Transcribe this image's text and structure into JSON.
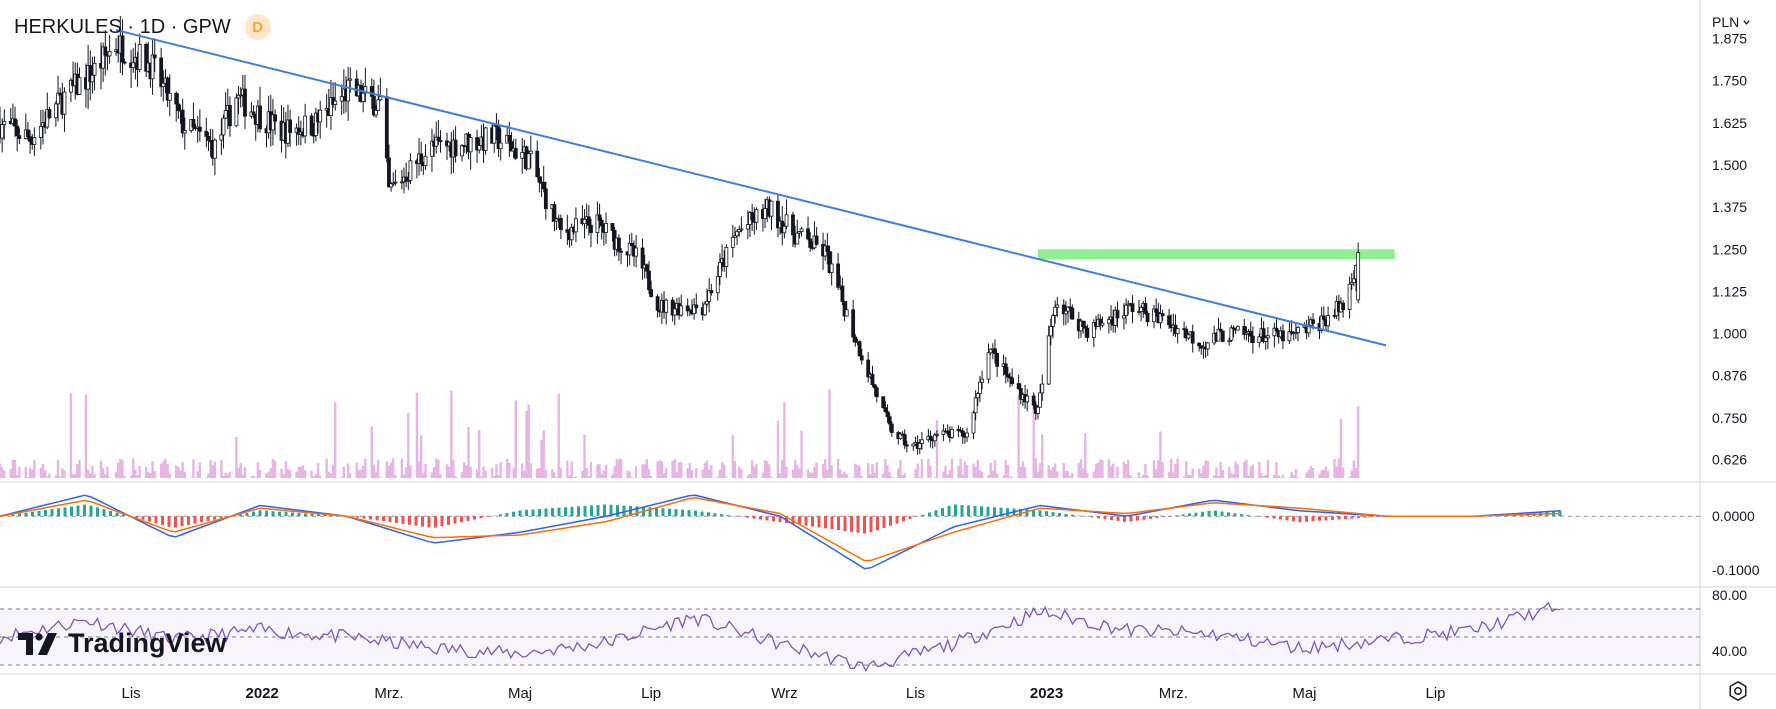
{
  "header": {
    "title": "HERKULES · 1D · GPW",
    "badge": "D"
  },
  "currency": {
    "label": "PLN",
    "icon": "chevron-down-icon"
  },
  "logo": {
    "text": "TradingView"
  },
  "settings_icon": "gear-icon",
  "colors": {
    "trendline": "#3d7fe0",
    "zone": "#90ee90",
    "volume": "#e7b5e3",
    "macd": "#2962ff",
    "signal": "#ff6d00",
    "rsi": "#7e57c2",
    "hist_pos": "#26a69a",
    "hist_neg": "#ef5350",
    "candle": "#131722"
  },
  "chart_data": [
    {
      "type": "candlestick",
      "title": "HERKULES · 1D · GPW",
      "ylim": [
        0.56,
        1.9
      ],
      "y_ticks": [
        "1.875",
        "1.750",
        "1.625",
        "1.500",
        "1.375",
        "1.250",
        "1.125",
        "1.000",
        "0.876",
        "0.750",
        "0.626"
      ],
      "x_ticks": [
        "Lis",
        "2022",
        "Mrz.",
        "Maj",
        "Lip",
        "Wrz",
        "Lis",
        "2023",
        "Mrz.",
        "Maj",
        "Lip"
      ],
      "series_close": [
        {
          "date": "2021-09-01",
          "close": 1.62
        },
        {
          "date": "2021-09-15",
          "close": 1.58
        },
        {
          "date": "2021-10-01",
          "close": 1.7
        },
        {
          "date": "2021-10-15",
          "close": 1.78
        },
        {
          "date": "2021-10-25",
          "close": 1.86
        },
        {
          "date": "2021-11-10",
          "close": 1.8
        },
        {
          "date": "2021-11-25",
          "close": 1.62
        },
        {
          "date": "2021-12-10",
          "close": 1.55
        },
        {
          "date": "2021-12-20",
          "close": 1.7
        },
        {
          "date": "2022-01-10",
          "close": 1.6
        },
        {
          "date": "2022-01-25",
          "close": 1.62
        },
        {
          "date": "2022-02-10",
          "close": 1.72
        },
        {
          "date": "2022-02-25",
          "close": 1.68
        },
        {
          "date": "2022-03-01",
          "close": 1.42
        },
        {
          "date": "2022-03-20",
          "close": 1.55
        },
        {
          "date": "2022-04-20",
          "close": 1.58
        },
        {
          "date": "2022-05-05",
          "close": 1.52
        },
        {
          "date": "2022-05-20",
          "close": 1.3
        },
        {
          "date": "2022-06-05",
          "close": 1.33
        },
        {
          "date": "2022-06-25",
          "close": 1.22
        },
        {
          "date": "2022-07-05",
          "close": 1.08
        },
        {
          "date": "2022-07-25",
          "close": 1.08
        },
        {
          "date": "2022-08-10",
          "close": 1.3
        },
        {
          "date": "2022-08-25",
          "close": 1.37
        },
        {
          "date": "2022-09-05",
          "close": 1.3
        },
        {
          "date": "2022-09-20",
          "close": 1.24
        },
        {
          "date": "2022-10-05",
          "close": 0.97
        },
        {
          "date": "2022-10-20",
          "close": 0.72
        },
        {
          "date": "2022-10-30",
          "close": 0.66
        },
        {
          "date": "2022-11-10",
          "close": 0.7
        },
        {
          "date": "2022-11-25",
          "close": 0.7
        },
        {
          "date": "2022-12-05",
          "close": 0.96
        },
        {
          "date": "2022-12-15",
          "close": 0.86
        },
        {
          "date": "2022-12-28",
          "close": 0.77
        },
        {
          "date": "2023-01-05",
          "close": 1.1
        },
        {
          "date": "2023-01-20",
          "close": 1.01
        },
        {
          "date": "2023-02-10",
          "close": 1.08
        },
        {
          "date": "2023-02-25",
          "close": 1.04
        },
        {
          "date": "2023-03-15",
          "close": 0.97
        },
        {
          "date": "2023-03-25",
          "close": 1.0
        },
        {
          "date": "2023-04-25",
          "close": 0.99
        },
        {
          "date": "2023-05-10",
          "close": 1.04
        },
        {
          "date": "2023-05-20",
          "close": 1.09
        },
        {
          "date": "2023-05-26",
          "close": 1.24
        }
      ],
      "annotations": {
        "trendline": [
          {
            "date": "2021-10-25",
            "price": 1.9
          },
          {
            "date": "2023-06-08",
            "price": 0.965
          }
        ],
        "resistance_zone": {
          "from": "2022-12-28",
          "to": "2023-06-12",
          "low": 1.22,
          "high": 1.25
        }
      }
    },
    {
      "type": "line",
      "title": "",
      "ylim": [
        -0.13,
        0.06
      ],
      "y_ticks": [
        "0.0000",
        "-0.1000"
      ],
      "series": [
        {
          "values": [
            0.0,
            0.04,
            -0.04,
            0.02,
            0.0,
            -0.05,
            -0.03,
            0.0,
            0.04,
            0.0,
            -0.1,
            -0.02,
            0.02,
            0.0,
            0.03,
            0.01,
            0.0,
            0.0,
            0.01
          ]
        },
        {
          "values": [
            0.0,
            0.03,
            -0.03,
            0.015,
            0.0,
            -0.04,
            -0.035,
            -0.01,
            0.035,
            0.005,
            -0.085,
            -0.03,
            0.015,
            0.005,
            0.025,
            0.015,
            0.0,
            0.0,
            0.005
          ]
        }
      ]
    },
    {
      "type": "line",
      "title": "",
      "ylim": [
        25,
        85
      ],
      "y_ticks": [
        "80.00",
        "40.00"
      ],
      "series": [
        {
          "values": [
            50,
            62,
            48,
            55,
            50,
            42,
            38,
            46,
            64,
            45,
            28,
            45,
            68,
            55,
            52,
            42,
            48,
            55,
            72
          ]
        }
      ]
    }
  ]
}
